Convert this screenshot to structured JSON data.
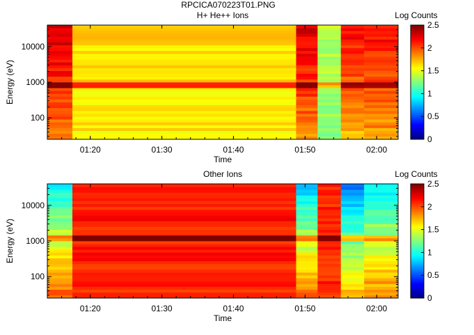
{
  "figure_title": "RPCICA070223T01.PNG",
  "chart_data": [
    {
      "type": "heatmap",
      "title": "H+ He++ Ions",
      "xlabel": "Time",
      "ylabel": "Energy (eV)",
      "yscale": "log",
      "ylim": [
        25,
        40000
      ],
      "xlim": [
        "01:14",
        "02:03"
      ],
      "x_tick_labels": [
        "01:20",
        "01:30",
        "01:40",
        "01:50",
        "02:00"
      ],
      "y_tick_labels": [
        "100",
        "1000",
        "10000"
      ],
      "colorbar": {
        "label": "Log Counts",
        "range": [
          0,
          2.5
        ],
        "ticks": [
          "0",
          "0.5",
          "1",
          "1.5",
          "2",
          "2.5"
        ]
      },
      "time_segments": [
        {
          "start": "01:14",
          "end": "01:17:30",
          "level_high_energy": 2.3,
          "level_low_energy": 1.9
        },
        {
          "start": "01:17:30",
          "end": "01:48:45",
          "level_high_energy": 1.65,
          "level_low_energy": 1.6
        },
        {
          "start": "01:48:45",
          "end": "01:51:45",
          "level_high_energy": 2.3,
          "level_low_energy": 1.85
        },
        {
          "start": "01:51:45",
          "end": "01:55",
          "level_high_energy": 1.4,
          "level_low_energy": 1.3
        },
        {
          "start": "01:55",
          "end": "01:58:15",
          "level_high_energy": 2.2,
          "level_low_energy": 1.7
        },
        {
          "start": "01:58:15",
          "end": "02:03",
          "level_high_energy": 2.2,
          "level_low_energy": 1.8
        }
      ],
      "enhanced_energy_band_eV": 800
    },
    {
      "type": "heatmap",
      "title": "Other Ions",
      "xlabel": "Time",
      "ylabel": "Energy (eV)",
      "yscale": "log",
      "ylim": [
        25,
        40000
      ],
      "xlim": [
        "01:14",
        "02:03"
      ],
      "x_tick_labels": [
        "01:20",
        "01:30",
        "01:40",
        "01:50",
        "02:00"
      ],
      "y_tick_labels": [
        "100",
        "1000",
        "10000"
      ],
      "colorbar": {
        "label": "Log Counts",
        "range": [
          0,
          2.5
        ],
        "ticks": [
          "0",
          "0.5",
          "1",
          "1.5",
          "2",
          "2.5"
        ]
      },
      "time_segments": [
        {
          "start": "01:14",
          "end": "01:17:30",
          "level_high_energy": 0.9,
          "level_low_energy": 2.0
        },
        {
          "start": "01:17:30",
          "end": "01:48:45",
          "level_high_energy": 2.15,
          "level_low_energy": 2.1
        },
        {
          "start": "01:48:45",
          "end": "01:51:45",
          "level_high_energy": 0.8,
          "level_low_energy": 2.0
        },
        {
          "start": "01:51:45",
          "end": "01:55",
          "level_high_energy": 2.1,
          "level_low_energy": 2.1
        },
        {
          "start": "01:55",
          "end": "01:58:15",
          "level_high_energy": 0.6,
          "level_low_energy": 1.8
        },
        {
          "start": "01:58:15",
          "end": "02:03",
          "level_high_energy": 0.9,
          "level_low_energy": 1.9
        }
      ],
      "enhanced_energy_band_eV": 1200
    }
  ]
}
